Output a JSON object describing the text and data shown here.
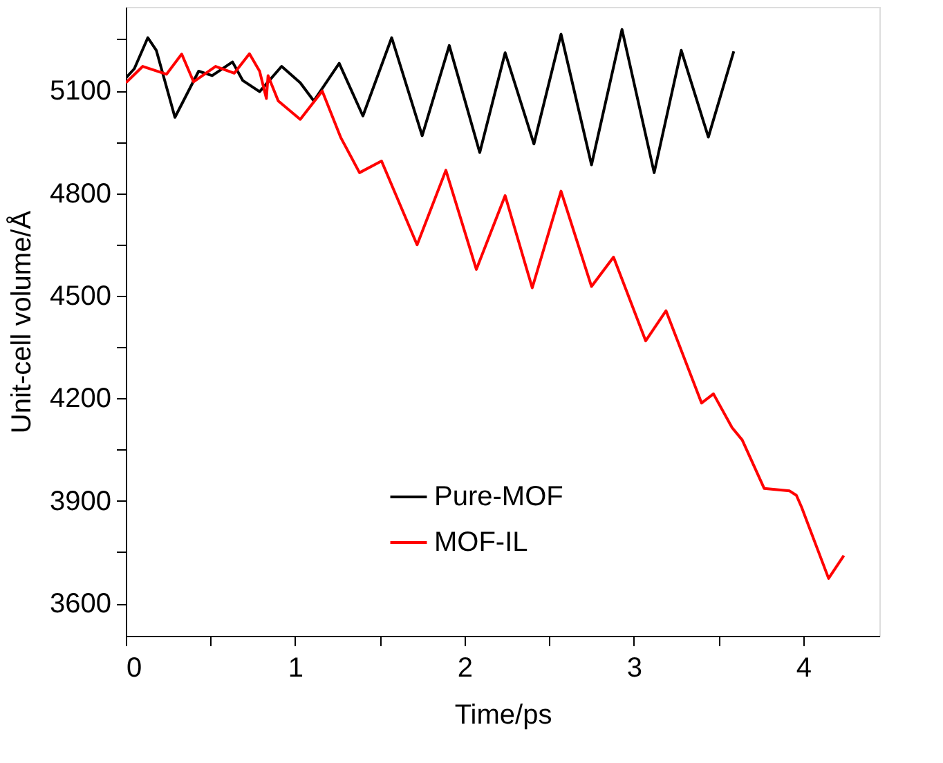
{
  "chart_data": {
    "type": "line",
    "xlabel": "Time/ps",
    "ylabel": "Unit-cell volume/Å",
    "xlim": [
      0,
      4.45
    ],
    "ylim": [
      3505,
      5345
    ],
    "xticks": [
      0,
      {
        "value": 0.5,
        "label": null
      },
      1,
      {
        "value": 1.5,
        "label": null
      },
      2,
      {
        "value": 2.5,
        "label": null
      },
      3,
      {
        "value": 3.5,
        "label": null
      },
      4
    ],
    "yticks": [
      3600,
      {
        "value": 3750,
        "label": null
      },
      3900,
      {
        "value": 4050,
        "label": null
      },
      4200,
      {
        "value": 4350,
        "label": null
      },
      4500,
      {
        "value": 4650,
        "label": null
      },
      4800,
      {
        "value": 4950,
        "label": null
      },
      5100,
      {
        "value": 5250,
        "label": null
      }
    ],
    "grid": false,
    "legend": "bottom",
    "line_style": "solid",
    "marker": "none",
    "series": [
      {
        "name": "Pure-MOF",
        "color": "#000000",
        "x": [
          0,
          0.05,
          0.13,
          0.18,
          0.29,
          0.34,
          0.43,
          0.51,
          0.63,
          0.69,
          0.79,
          0.92,
          1.03,
          1.11,
          1.26,
          1.4,
          1.57,
          1.75,
          1.91,
          2.09,
          2.24,
          2.41,
          2.57,
          2.75,
          2.93,
          3.12,
          3.28,
          3.44,
          3.59
        ],
        "values": [
          5137,
          5164,
          5255,
          5218,
          5022,
          5070,
          5157,
          5144,
          5184,
          5130,
          5097,
          5171,
          5123,
          5070,
          5180,
          5026,
          5255,
          4968,
          5232,
          4919,
          5211,
          4944,
          5265,
          4883,
          5279,
          4860,
          5218,
          4964,
          5215
        ]
      },
      {
        "name": "MOF-IL",
        "color": "#ff0000",
        "x": [
          0,
          0.1,
          0.24,
          0.33,
          0.4,
          0.53,
          0.64,
          0.73,
          0.79,
          0.83,
          0.84,
          0.9,
          1.03,
          1.16,
          1.27,
          1.38,
          1.51,
          1.72,
          1.89,
          2.07,
          2.24,
          2.4,
          2.57,
          2.75,
          2.88,
          3.07,
          3.19,
          3.4,
          3.47,
          3.58,
          3.64,
          3.77,
          3.92,
          3.96,
          3.99,
          4.15,
          4.24
        ],
        "values": [
          5123,
          5171,
          5148,
          5207,
          5126,
          5171,
          5151,
          5208,
          5157,
          5077,
          5144,
          5070,
          5016,
          5099,
          4962,
          4860,
          4894,
          4649,
          4867,
          4577,
          4793,
          4523,
          4806,
          4527,
          4613,
          4368,
          4456,
          4186,
          4213,
          4114,
          4078,
          3936,
          3929,
          3916,
          3882,
          3673,
          3740
        ]
      }
    ]
  }
}
